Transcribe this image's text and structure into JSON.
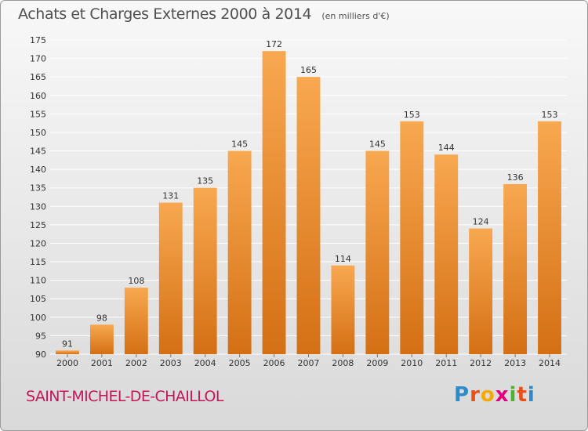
{
  "header": {
    "title": "Achats et Charges Externes 2000 à 2014",
    "unit": "(en milliers d'€)"
  },
  "footer": {
    "commune": "SAINT-MICHEL-DE-CHAILLOL",
    "logo_letters": [
      "P",
      "r",
      "o",
      "x",
      "i",
      "t",
      "i"
    ],
    "logo_colors": [
      "#2e8bc8",
      "#e94e1b",
      "#f5a800",
      "#e3007d",
      "#4fb131",
      "#e94e1b",
      "#2e8bc8"
    ]
  },
  "colors": {
    "bar_light": "#f8a850",
    "bar_dark": "#d46f14",
    "grid": "#ffffff",
    "axis_text": "#333333",
    "commune_text": "#c2185b"
  },
  "chart_data": {
    "type": "bar",
    "title": "Achats et Charges Externes 2000 à 2014",
    "subtitle": "(en milliers d'€)",
    "xlabel": "",
    "ylabel": "",
    "categories": [
      "2000",
      "2001",
      "2002",
      "2003",
      "2004",
      "2005",
      "2006",
      "2007",
      "2008",
      "2009",
      "2010",
      "2011",
      "2012",
      "2013",
      "2014"
    ],
    "values": [
      91,
      98,
      108,
      131,
      135,
      145,
      172,
      165,
      114,
      145,
      153,
      144,
      124,
      136,
      153
    ],
    "ylim": [
      90,
      175
    ],
    "yticks": [
      90,
      95,
      100,
      105,
      110,
      115,
      120,
      125,
      130,
      135,
      140,
      145,
      150,
      155,
      160,
      165,
      170,
      175
    ],
    "grid": true,
    "legend": "none"
  }
}
